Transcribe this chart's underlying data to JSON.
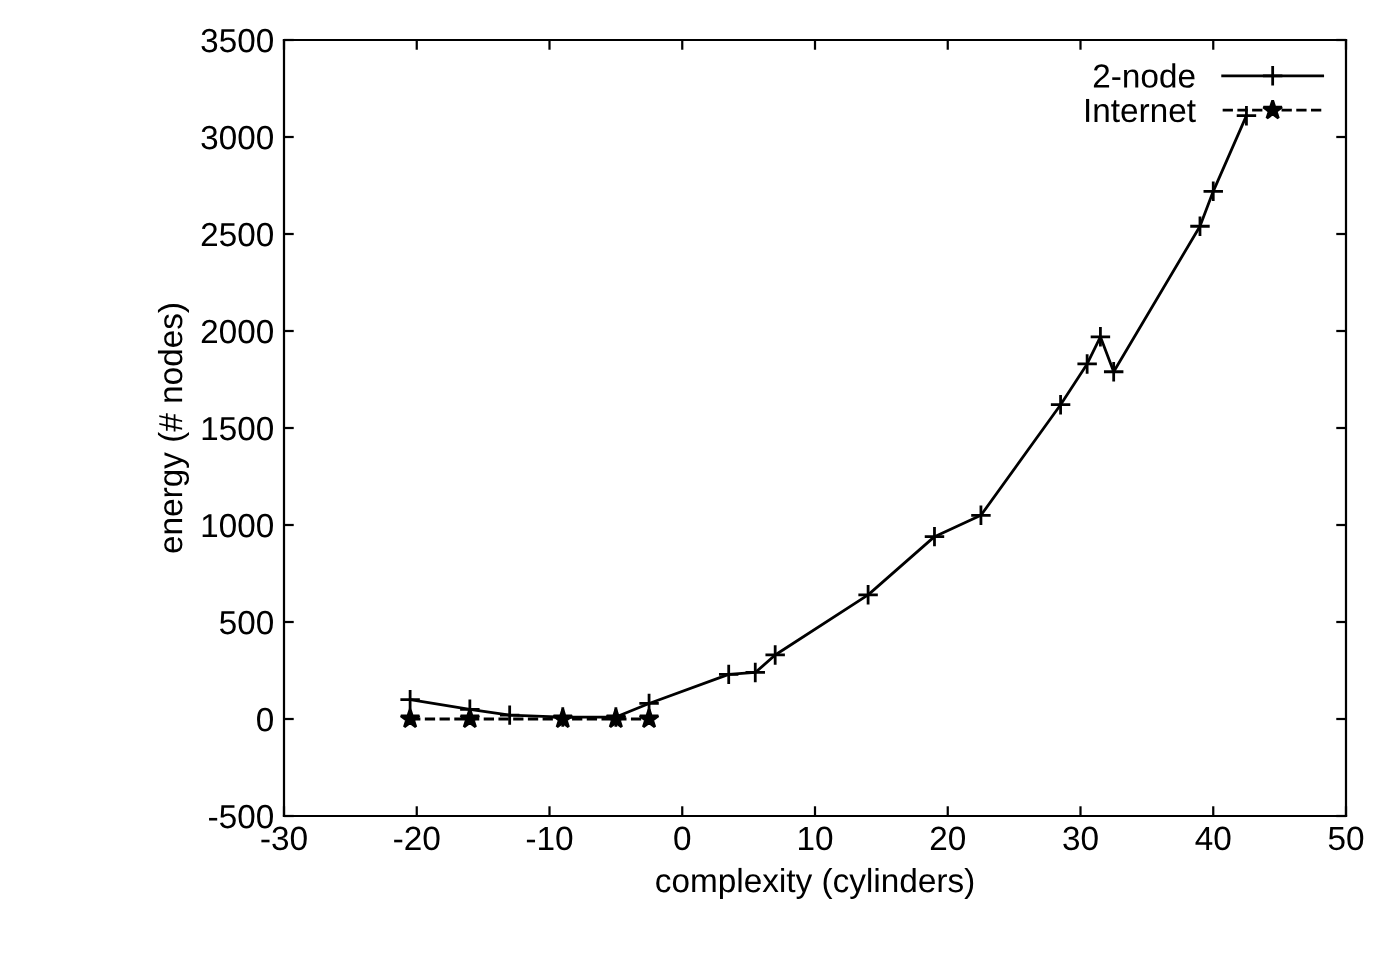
{
  "chart_data": {
    "type": "line",
    "xlabel": "complexity (cylinders)",
    "ylabel": "energy (# nodes)",
    "xlim": [
      -30,
      50
    ],
    "xticks": [
      -30,
      -20,
      -10,
      0,
      10,
      20,
      30,
      40,
      50
    ],
    "ylim": [
      -500,
      3500
    ],
    "yticks": [
      -500,
      0,
      500,
      1000,
      1500,
      2000,
      2500,
      3000,
      3500
    ],
    "grid": false,
    "legend": "top right",
    "series": [
      {
        "name": "2-node",
        "color": "#000000",
        "marker": "cross",
        "line_style": "solid",
        "x": [
          -20.5,
          -16,
          -13,
          -9,
          -5,
          -2.5,
          3.5,
          5.5,
          7,
          14,
          19,
          22.5,
          28.5,
          30.5,
          31.5,
          32.5,
          39,
          40,
          42.5
        ],
        "values": [
          100,
          50,
          20,
          10,
          10,
          80,
          230,
          240,
          330,
          640,
          940,
          1050,
          1620,
          1830,
          1970,
          1790,
          2540,
          2720,
          3110
        ]
      },
      {
        "name": "Internet",
        "color": "#000000",
        "marker": "star",
        "line_style": "dashed",
        "x": [
          -20.5,
          -16,
          -9,
          -5,
          -2.5
        ],
        "values": [
          0,
          0,
          0,
          0,
          0
        ]
      }
    ]
  }
}
